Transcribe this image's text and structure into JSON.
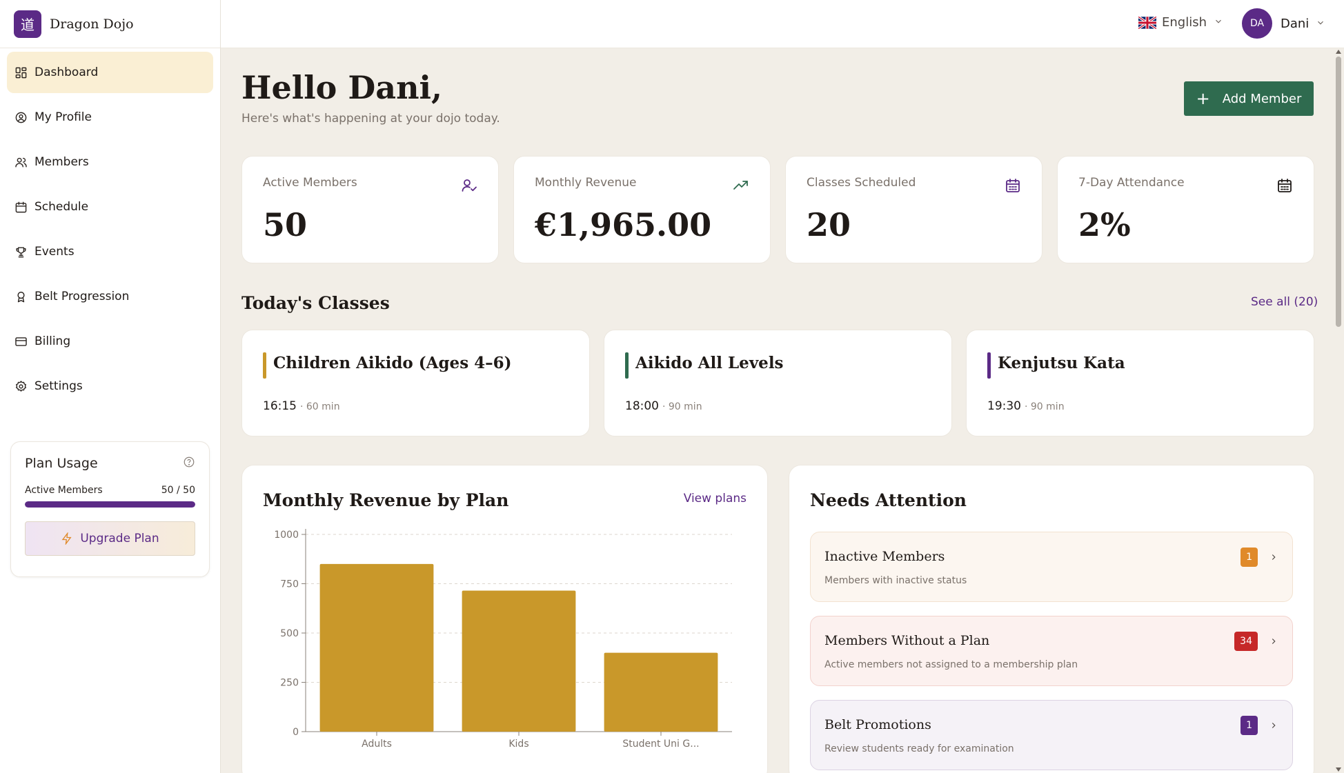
{
  "brand": {
    "logo_glyph": "道",
    "name": "Dragon Dojo"
  },
  "sidebar": {
    "items": [
      {
        "label": "Dashboard",
        "icon": "dashboard-grid-icon",
        "active": true
      },
      {
        "label": "My Profile",
        "icon": "user-circle-icon"
      },
      {
        "label": "Members",
        "icon": "users-icon"
      },
      {
        "label": "Schedule",
        "icon": "calendar-icon"
      },
      {
        "label": "Events",
        "icon": "trophy-icon"
      },
      {
        "label": "Belt Progression",
        "icon": "award-icon"
      },
      {
        "label": "Billing",
        "icon": "credit-card-icon"
      },
      {
        "label": "Settings",
        "icon": "gear-icon"
      }
    ],
    "plan_usage": {
      "title": "Plan Usage",
      "metric_label": "Active Members",
      "metric_value": "50 / 50",
      "usage_fraction": 1.0,
      "upgrade_label": "Upgrade Plan"
    }
  },
  "topbar": {
    "language": "English",
    "user_initials": "DA",
    "user_name": "Dani"
  },
  "header": {
    "greeting": "Hello Dani,",
    "subtitle": "Here's what's happening at your dojo today.",
    "add_member_label": "Add Member"
  },
  "stats": [
    {
      "label": "Active Members",
      "value": "50",
      "icon": "user-check-icon"
    },
    {
      "label": "Monthly Revenue",
      "value": "€1,965.00",
      "icon": "trending-up-icon"
    },
    {
      "label": "Classes Scheduled",
      "value": "20",
      "icon": "calendar-grid-icon"
    },
    {
      "label": "7-Day Attendance",
      "value": "2%",
      "icon": "calendar-grid-icon"
    }
  ],
  "todays_classes": {
    "title": "Today's Classes",
    "see_all": "See all (20)",
    "items": [
      {
        "name": "Children Aikido (Ages 4–6)",
        "time": "16:15",
        "duration": "· 60 min",
        "color": "#c9982a"
      },
      {
        "name": "Aikido All Levels",
        "time": "18:00",
        "duration": "· 90 min",
        "color": "#2f6b4f"
      },
      {
        "name": "Kenjutsu Kata",
        "time": "19:30",
        "duration": "· 90 min",
        "color": "#5b2a86"
      }
    ]
  },
  "revenue_panel": {
    "title": "Monthly Revenue by Plan",
    "link": "View plans"
  },
  "chart_data": {
    "type": "bar",
    "categories": [
      "Adults",
      "Kids",
      "Student Uni G..."
    ],
    "values": [
      850,
      715,
      400
    ],
    "ylim": [
      0,
      1000
    ],
    "yticks": [
      0,
      250,
      500,
      750,
      1000
    ],
    "grid": true,
    "bar_color": "#c9982a"
  },
  "attention_panel": {
    "title": "Needs Attention",
    "items": [
      {
        "title": "Inactive Members",
        "desc": "Members with inactive status",
        "count": "1",
        "badge_color": "#e08a2a",
        "bg": "#fcf6f0",
        "border": "#f3e2d0"
      },
      {
        "title": "Members Without a Plan",
        "desc": "Active members not assigned to a membership plan",
        "count": "34",
        "badge_color": "#c62828",
        "bg": "#fcf1ef",
        "border": "#f2d2cd"
      },
      {
        "title": "Belt Promotions",
        "desc": "Review students ready for examination",
        "count": "1",
        "badge_color": "#5b2a86",
        "bg": "#f5f2f7",
        "border": "#dcd3e3"
      }
    ]
  }
}
